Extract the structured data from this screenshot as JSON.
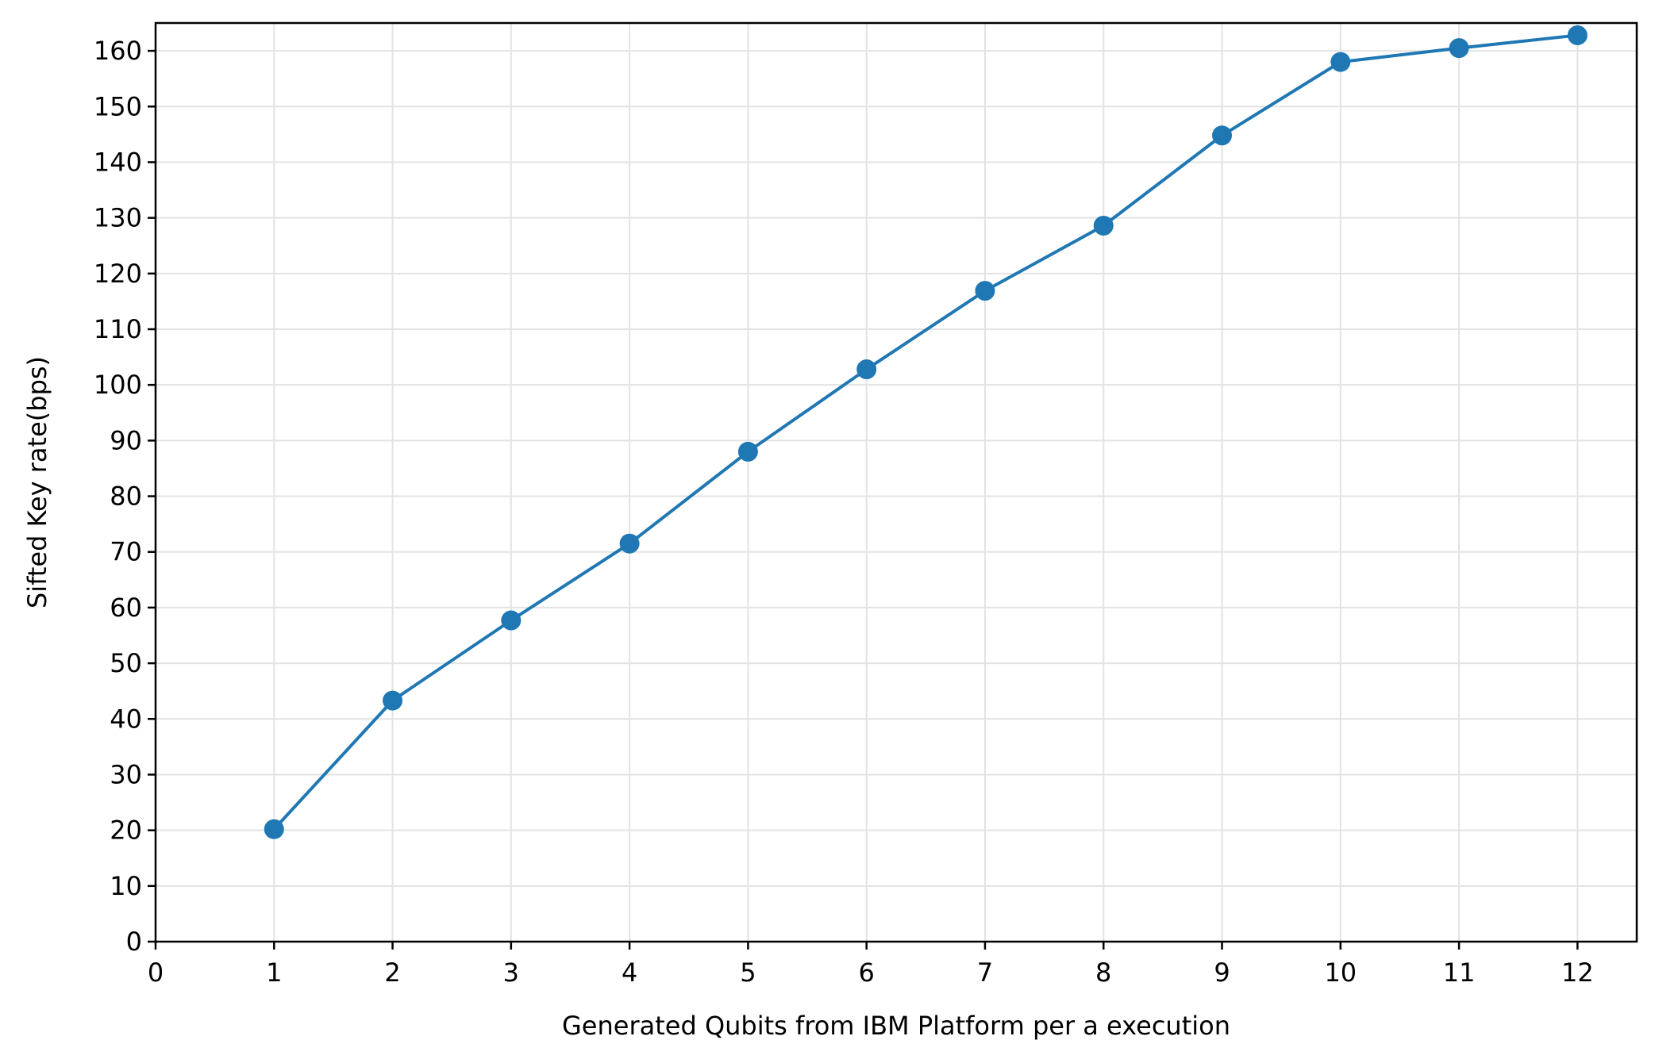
{
  "chart_data": {
    "type": "line",
    "title": "",
    "xlabel": "Generated Qubits from IBM Platform per a execution",
    "ylabel": "Sifted Key rate(bps)",
    "xlim": [
      0,
      12.5
    ],
    "ylim": [
      0,
      165
    ],
    "xticks": [
      0,
      1,
      2,
      3,
      4,
      5,
      6,
      7,
      8,
      9,
      10,
      11,
      12
    ],
    "yticks": [
      0,
      10,
      20,
      30,
      40,
      50,
      60,
      70,
      80,
      90,
      100,
      110,
      120,
      130,
      140,
      150,
      160
    ],
    "xtick_labels": [
      "0",
      "1",
      "2",
      "3",
      "4",
      "5",
      "6",
      "7",
      "8",
      "9",
      "10",
      "11",
      "12"
    ],
    "ytick_labels": [
      "0",
      "10",
      "20",
      "30",
      "40",
      "50",
      "60",
      "70",
      "80",
      "90",
      "100",
      "110",
      "120",
      "130",
      "140",
      "150",
      "160"
    ],
    "grid": true,
    "legend": "none",
    "series": [
      {
        "color": "#1f77b4",
        "marker": "circle",
        "x": [
          1,
          2,
          3,
          4,
          5,
          6,
          7,
          8,
          9,
          10,
          11,
          12
        ],
        "y": [
          20.2,
          43.3,
          57.7,
          71.5,
          88.0,
          102.8,
          116.9,
          128.6,
          144.8,
          158.0,
          160.5,
          162.8
        ]
      }
    ]
  }
}
